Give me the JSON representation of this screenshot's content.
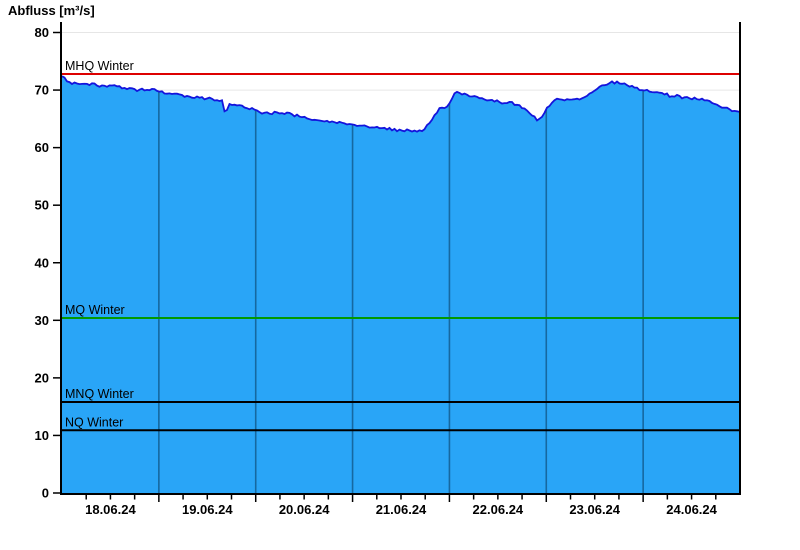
{
  "header": {
    "title": "Abfluss [m³/s]"
  },
  "chart_data": {
    "type": "area",
    "title": "Abfluss [m³/s]",
    "ylabel": "Abfluss [m³/s]",
    "xlabel": "",
    "ylim": [
      0,
      80
    ],
    "ytick_step": 10,
    "yticks": [
      0,
      10,
      20,
      30,
      40,
      50,
      60,
      70,
      80
    ],
    "x_axis": {
      "span_days": 7,
      "start": "18.06.24",
      "end": "24.06.24",
      "day_labels": [
        "18.06.24",
        "19.06.24",
        "20.06.24",
        "21.06.24",
        "22.06.24",
        "23.06.24",
        "24.06.24"
      ],
      "minor_ticks_per_day": 4
    },
    "grid": true,
    "legend_position": "none",
    "reference_lines": [
      {
        "label": "MHQ Winter",
        "value": 72.8,
        "color": "#dd0000"
      },
      {
        "label": "MQ Winter",
        "value": 30.4,
        "color": "#009900"
      },
      {
        "label": "MNQ Winter",
        "value": 15.8,
        "color": "#000000"
      },
      {
        "label": "NQ Winter",
        "value": 10.9,
        "color": "#000000"
      }
    ],
    "colors": {
      "area_fill": "#29a5f7",
      "area_stroke": "#1414dc",
      "day_divider": "#1668a0",
      "h_gridline": "#e6e6e6",
      "axis": "#000000"
    },
    "series": [
      {
        "name": "Abfluss",
        "unit": "m³/s",
        "points": [
          [
            0,
            72.4
          ],
          [
            0.02,
            72.1
          ],
          [
            0.05,
            71.7
          ],
          [
            0.08,
            71.4
          ],
          [
            0.11,
            71.2
          ],
          [
            0.14,
            71.3
          ],
          [
            0.17,
            71.1
          ],
          [
            0.2,
            71.0
          ],
          [
            0.24,
            71.1
          ],
          [
            0.27,
            70.9
          ],
          [
            0.3,
            71.0
          ],
          [
            0.33,
            71.1
          ],
          [
            0.36,
            70.9
          ],
          [
            0.39,
            70.8
          ],
          [
            0.42,
            70.9
          ],
          [
            0.45,
            70.7
          ],
          [
            0.48,
            70.8
          ],
          [
            0.51,
            70.9
          ],
          [
            0.54,
            70.7
          ],
          [
            0.57,
            70.5
          ],
          [
            0.6,
            70.4
          ],
          [
            0.63,
            70.5
          ],
          [
            0.66,
            70.3
          ],
          [
            0.69,
            70.2
          ],
          [
            0.72,
            70.3
          ],
          [
            0.75,
            70.1
          ],
          [
            0.78,
            70.0
          ],
          [
            0.81,
            70.1
          ],
          [
            0.84,
            70.2
          ],
          [
            0.87,
            70.0
          ],
          [
            0.9,
            69.9
          ],
          [
            0.93,
            70.0
          ],
          [
            0.96,
            69.9
          ],
          [
            1,
            69.8
          ],
          [
            1.03,
            69.6
          ],
          [
            1.06,
            69.5
          ],
          [
            1.09,
            69.4
          ],
          [
            1.12,
            69.5
          ],
          [
            1.15,
            69.4
          ],
          [
            1.18,
            69.5
          ],
          [
            1.21,
            69.3
          ],
          [
            1.24,
            69.1
          ],
          [
            1.27,
            69.0
          ],
          [
            1.3,
            68.9
          ],
          [
            1.33,
            68.7
          ],
          [
            1.36,
            68.6
          ],
          [
            1.39,
            68.7
          ],
          [
            1.42,
            68.8
          ],
          [
            1.45,
            68.6
          ],
          [
            1.48,
            68.4
          ],
          [
            1.51,
            68.6
          ],
          [
            1.54,
            68.9
          ],
          [
            1.56,
            68.4
          ],
          [
            1.59,
            68.3
          ],
          [
            1.62,
            68.2
          ],
          [
            1.65,
            68.3
          ],
          [
            1.67,
            67.0
          ],
          [
            1.69,
            65.7
          ],
          [
            1.71,
            67.3
          ],
          [
            1.74,
            67.6
          ],
          [
            1.77,
            67.4
          ],
          [
            1.8,
            67.3
          ],
          [
            1.83,
            67.4
          ],
          [
            1.86,
            67.2
          ],
          [
            1.89,
            67.0
          ],
          [
            1.92,
            66.9
          ],
          [
            1.95,
            66.8
          ],
          [
            1.98,
            66.7
          ],
          [
            2,
            66.5
          ],
          [
            2.04,
            66.3
          ],
          [
            2.08,
            66.1
          ],
          [
            2.12,
            66.0
          ],
          [
            2.16,
            65.9
          ],
          [
            2.2,
            66.1
          ],
          [
            2.24,
            66.2
          ],
          [
            2.28,
            65.9
          ],
          [
            2.32,
            66.0
          ],
          [
            2.36,
            65.8
          ],
          [
            2.4,
            65.6
          ],
          [
            2.44,
            65.4
          ],
          [
            2.48,
            65.2
          ],
          [
            2.52,
            65.1
          ],
          [
            2.56,
            64.9
          ],
          [
            2.6,
            64.8
          ],
          [
            2.65,
            64.7
          ],
          [
            2.7,
            64.6
          ],
          [
            2.75,
            64.5
          ],
          [
            2.8,
            64.4
          ],
          [
            2.85,
            64.3
          ],
          [
            2.9,
            64.2
          ],
          [
            2.95,
            64.1
          ],
          [
            3,
            64.0
          ],
          [
            3.05,
            63.8
          ],
          [
            3.1,
            63.7
          ],
          [
            3.15,
            63.6
          ],
          [
            3.2,
            63.5
          ],
          [
            3.25,
            63.4
          ],
          [
            3.3,
            63.4
          ],
          [
            3.35,
            63.3
          ],
          [
            3.4,
            63.2
          ],
          [
            3.45,
            63.1
          ],
          [
            3.5,
            63.0
          ],
          [
            3.55,
            62.9
          ],
          [
            3.6,
            62.9
          ],
          [
            3.65,
            62.8
          ],
          [
            3.7,
            62.8
          ],
          [
            3.73,
            63.0
          ],
          [
            3.76,
            63.6
          ],
          [
            3.79,
            64.3
          ],
          [
            3.82,
            64.9
          ],
          [
            3.85,
            65.9
          ],
          [
            3.88,
            66.4
          ],
          [
            3.9,
            66.9
          ],
          [
            3.92,
            66.7
          ],
          [
            3.94,
            66.6
          ],
          [
            3.97,
            67.0
          ],
          [
            4,
            67.6
          ],
          [
            4.03,
            68.6
          ],
          [
            4.06,
            69.5
          ],
          [
            4.09,
            69.4
          ],
          [
            4.12,
            69.5
          ],
          [
            4.15,
            69.3
          ],
          [
            4.18,
            69.1
          ],
          [
            4.22,
            69.0
          ],
          [
            4.26,
            68.8
          ],
          [
            4.3,
            68.7
          ],
          [
            4.34,
            68.6
          ],
          [
            4.38,
            68.4
          ],
          [
            4.42,
            68.3
          ],
          [
            4.46,
            68.1
          ],
          [
            4.5,
            68.0
          ],
          [
            4.54,
            67.8
          ],
          [
            4.58,
            67.7
          ],
          [
            4.62,
            67.9
          ],
          [
            4.66,
            67.6
          ],
          [
            4.7,
            67.3
          ],
          [
            4.74,
            67.1
          ],
          [
            4.78,
            66.7
          ],
          [
            4.82,
            66.2
          ],
          [
            4.86,
            65.6
          ],
          [
            4.9,
            65.0
          ],
          [
            4.93,
            64.8
          ],
          [
            4.96,
            65.5
          ],
          [
            4.99,
            66.5
          ],
          [
            5.02,
            67.2
          ],
          [
            5.05,
            67.8
          ],
          [
            5.08,
            68.1
          ],
          [
            5.12,
            68.3
          ],
          [
            5.16,
            68.4
          ],
          [
            5.2,
            68.5
          ],
          [
            5.24,
            68.4
          ],
          [
            5.28,
            68.3
          ],
          [
            5.32,
            68.4
          ],
          [
            5.36,
            68.5
          ],
          [
            5.4,
            68.8
          ],
          [
            5.44,
            69.2
          ],
          [
            5.48,
            69.6
          ],
          [
            5.52,
            70.2
          ],
          [
            5.56,
            70.7
          ],
          [
            5.6,
            71.0
          ],
          [
            5.64,
            71.2
          ],
          [
            5.68,
            71.4
          ],
          [
            5.72,
            71.3
          ],
          [
            5.76,
            71.2
          ],
          [
            5.8,
            71.0
          ],
          [
            5.84,
            70.8
          ],
          [
            5.88,
            70.6
          ],
          [
            5.92,
            70.4
          ],
          [
            5.96,
            70.1
          ],
          [
            6,
            70.0
          ],
          [
            6.04,
            69.9
          ],
          [
            6.08,
            69.8
          ],
          [
            6.12,
            69.6
          ],
          [
            6.16,
            69.5
          ],
          [
            6.2,
            69.3
          ],
          [
            6.24,
            69.2
          ],
          [
            6.28,
            69.0
          ],
          [
            6.32,
            68.9
          ],
          [
            6.36,
            68.9
          ],
          [
            6.4,
            68.8
          ],
          [
            6.44,
            68.7
          ],
          [
            6.48,
            68.6
          ],
          [
            6.52,
            68.6
          ],
          [
            6.56,
            68.5
          ],
          [
            6.6,
            68.4
          ],
          [
            6.64,
            68.2
          ],
          [
            6.68,
            68.0
          ],
          [
            6.72,
            67.8
          ],
          [
            6.76,
            67.5
          ],
          [
            6.8,
            67.2
          ],
          [
            6.84,
            66.9
          ],
          [
            6.88,
            66.7
          ],
          [
            6.92,
            66.5
          ],
          [
            6.96,
            66.3
          ],
          [
            7,
            66.2
          ]
        ]
      }
    ]
  }
}
